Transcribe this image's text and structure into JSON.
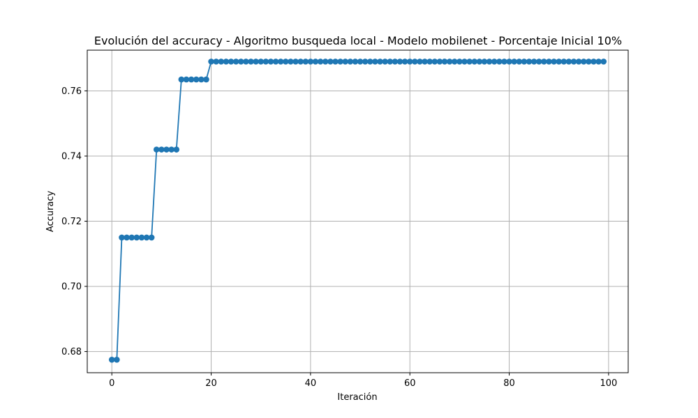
{
  "chart_data": {
    "type": "line",
    "title": "Evolución del accuracy - Algoritmo busqueda local - Modelo mobilenet - Porcentaje Inicial 10%",
    "xlabel": "Iteración",
    "ylabel": "Accuracy",
    "xlim": [
      -4.95,
      103.95
    ],
    "ylim": [
      0.6735,
      0.7725
    ],
    "xticks": [
      0,
      20,
      40,
      60,
      80,
      100
    ],
    "xtick_labels": [
      "0",
      "20",
      "40",
      "60",
      "80",
      "100"
    ],
    "yticks": [
      0.68,
      0.7,
      0.72,
      0.74,
      0.76
    ],
    "ytick_labels": [
      "0.68",
      "0.70",
      "0.72",
      "0.74",
      "0.76"
    ],
    "grid": true,
    "line_color": "#1f77b4",
    "marker": "circle",
    "series": [
      {
        "x": [
          0,
          1,
          2,
          3,
          4,
          5,
          6,
          7,
          8,
          9,
          10,
          11,
          12,
          13,
          14,
          15,
          16,
          17,
          18,
          19,
          20,
          21,
          22,
          23,
          24,
          25,
          26,
          27,
          28,
          29,
          30,
          31,
          32,
          33,
          34,
          35,
          36,
          37,
          38,
          39,
          40,
          41,
          42,
          43,
          44,
          45,
          46,
          47,
          48,
          49,
          50,
          51,
          52,
          53,
          54,
          55,
          56,
          57,
          58,
          59,
          60,
          61,
          62,
          63,
          64,
          65,
          66,
          67,
          68,
          69,
          70,
          71,
          72,
          73,
          74,
          75,
          76,
          77,
          78,
          79,
          80,
          81,
          82,
          83,
          84,
          85,
          86,
          87,
          88,
          89,
          90,
          91,
          92,
          93,
          94,
          95,
          96,
          97,
          98,
          99
        ],
        "y": [
          0.6775,
          0.6775,
          0.715,
          0.715,
          0.715,
          0.715,
          0.715,
          0.715,
          0.715,
          0.742,
          0.742,
          0.742,
          0.742,
          0.742,
          0.7635,
          0.7635,
          0.7635,
          0.7635,
          0.7635,
          0.7635,
          0.769,
          0.769,
          0.769,
          0.769,
          0.769,
          0.769,
          0.769,
          0.769,
          0.769,
          0.769,
          0.769,
          0.769,
          0.769,
          0.769,
          0.769,
          0.769,
          0.769,
          0.769,
          0.769,
          0.769,
          0.769,
          0.769,
          0.769,
          0.769,
          0.769,
          0.769,
          0.769,
          0.769,
          0.769,
          0.769,
          0.769,
          0.769,
          0.769,
          0.769,
          0.769,
          0.769,
          0.769,
          0.769,
          0.769,
          0.769,
          0.769,
          0.769,
          0.769,
          0.769,
          0.769,
          0.769,
          0.769,
          0.769,
          0.769,
          0.769,
          0.769,
          0.769,
          0.769,
          0.769,
          0.769,
          0.769,
          0.769,
          0.769,
          0.769,
          0.769,
          0.769,
          0.769,
          0.769,
          0.769,
          0.769,
          0.769,
          0.769,
          0.769,
          0.769,
          0.769,
          0.769,
          0.769,
          0.769,
          0.769,
          0.769,
          0.769,
          0.769,
          0.769,
          0.769,
          0.769
        ]
      }
    ]
  }
}
